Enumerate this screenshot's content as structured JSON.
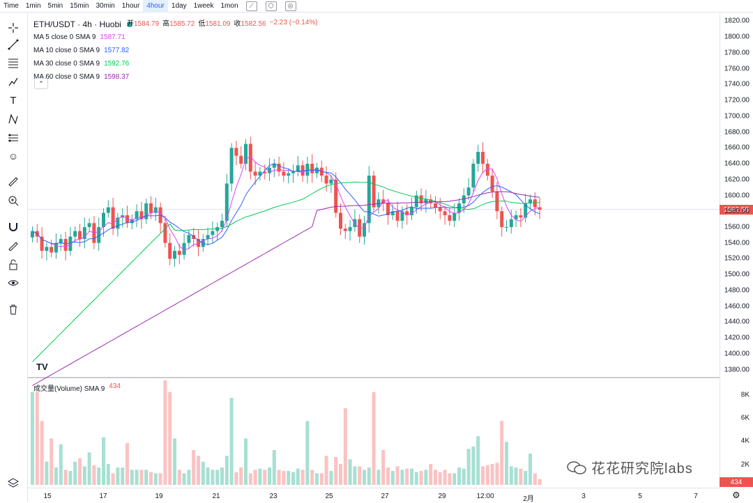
{
  "toolbar": {
    "timeframes": [
      "Time",
      "1min",
      "5min",
      "15min",
      "30min",
      "1hour",
      "4hour",
      "1day",
      "1week",
      "1mon"
    ],
    "active": "4hour"
  },
  "symbol": {
    "title": "ETH/USDT · 4h · Huobi",
    "ohlc_open_label": "开",
    "ohlc_open": "1584.79",
    "ohlc_high_label": "高",
    "ohlc_high": "1585.72",
    "ohlc_low_label": "低",
    "ohlc_low": "1581.09",
    "ohlc_close_label": "收",
    "ohlc_close": "1582.56",
    "change": "−2.23 (−0.14%)"
  },
  "indicators": [
    {
      "label": "MA 5 close 0 SMA 9",
      "value": "1587.71",
      "color": "#e040fb"
    },
    {
      "label": "MA 10 close 0 SMA 9",
      "value": "1577.82",
      "color": "#2962ff"
    },
    {
      "label": "MA 30 close 0 SMA 9",
      "value": "1592.76",
      "color": "#00c853"
    },
    {
      "label": "MA 60 close 0 SMA 9",
      "value": "1598.37",
      "color": "#9c27b0"
    }
  ],
  "volume": {
    "label": "成交量(Volume) SMA 9",
    "value": "434",
    "current_tag": "434",
    "axis": [
      "8K",
      "6K",
      "4K",
      "2K"
    ]
  },
  "price_axis": [
    "1820.00",
    "1800.00",
    "1780.00",
    "1760.00",
    "1740.00",
    "1720.00",
    "1700.00",
    "1680.00",
    "1660.00",
    "1640.00",
    "1620.00",
    "1600.00",
    "1580.00",
    "1560.00",
    "1540.00",
    "1520.00",
    "1500.00",
    "1480.00",
    "1460.00",
    "1440.00",
    "1420.00",
    "1400.00",
    "1380.00"
  ],
  "current_price_tag": "1582.56",
  "time_axis": [
    "15",
    "17",
    "19",
    "21",
    "23",
    "25",
    "27",
    "29",
    "12:00",
    "2月",
    "3",
    "5",
    "7"
  ],
  "watermark": "花花研究院labs",
  "colors": {
    "up": "#26a69a",
    "down": "#ef5350",
    "up_vol": "#a8e0d3",
    "down_vol": "#fbc2c2"
  },
  "chart_data": {
    "type": "candlestick",
    "closes": [
      1555,
      1548,
      1530,
      1535,
      1528,
      1540,
      1545,
      1530,
      1548,
      1555,
      1545,
      1560,
      1565,
      1540,
      1560,
      1578,
      1585,
      1558,
      1572,
      1575,
      1565,
      1570,
      1580,
      1570,
      1590,
      1578,
      1585,
      1565,
      1540,
      1520,
      1530,
      1525,
      1540,
      1550,
      1545,
      1535,
      1545,
      1550,
      1555,
      1560,
      1568,
      1615,
      1660,
      1650,
      1640,
      1665,
      1630,
      1625,
      1630,
      1628,
      1635,
      1640,
      1630,
      1625,
      1628,
      1630,
      1638,
      1625,
      1640,
      1628,
      1635,
      1625,
      1615,
      1620,
      1578,
      1558,
      1555,
      1560,
      1570,
      1548,
      1565,
      1625,
      1585,
      1595,
      1590,
      1575,
      1580,
      1568,
      1580,
      1575,
      1585,
      1600,
      1590,
      1595,
      1590,
      1585,
      1580,
      1575,
      1568,
      1578,
      1590,
      1600,
      1610,
      1640,
      1655,
      1640,
      1625,
      1605,
      1580,
      1560,
      1560,
      1570,
      1575,
      1572,
      1590,
      1595,
      1585,
      1582
    ],
    "volumes": [
      8,
      8,
      5.5,
      2,
      4,
      1.5,
      3.5,
      1.3,
      1.2,
      2,
      2.3,
      1.6,
      2.8,
      1.7,
      1.5,
      4.1,
      1.8,
      1,
      1.5,
      1.5,
      3.6,
      1.3,
      1.3,
      1.3,
      1.3,
      1.1,
      1,
      1,
      9,
      8,
      4,
      1.3,
      1,
      1.3,
      3,
      2.5,
      2,
      1.5,
      1.3,
      1.3,
      1.5,
      2.5,
      7.5,
      1.1,
      1.5,
      4,
      1,
      1.3,
      1.4,
      1.3,
      1.5,
      3,
      1.3,
      1.2,
      1.2,
      1.1,
      1.4,
      1.3,
      5.5,
      1.3,
      1,
      1,
      2.5,
      1.2,
      2.4,
      1.8,
      6.6,
      2.2,
      1.6,
      1.6,
      1.3,
      1.5,
      8,
      1.3,
      3,
      1.5,
      1.2,
      1.6,
      1.3,
      1.4,
      1.4,
      1.1,
      1.2,
      1.3,
      1.8,
      1.3,
      1.1,
      1.3,
      1,
      1,
      1.5,
      1.4,
      3.1,
      3.3,
      4.2,
      1.6,
      1.7,
      1.8,
      1.9,
      5.5,
      3.7,
      1.6,
      1.5,
      1.4,
      1.2,
      2.7,
      1,
      0.5
    ],
    "ma_ranges": {
      "ylim": [
        1370,
        1830
      ],
      "vol_ylim": [
        0,
        9
      ]
    }
  }
}
